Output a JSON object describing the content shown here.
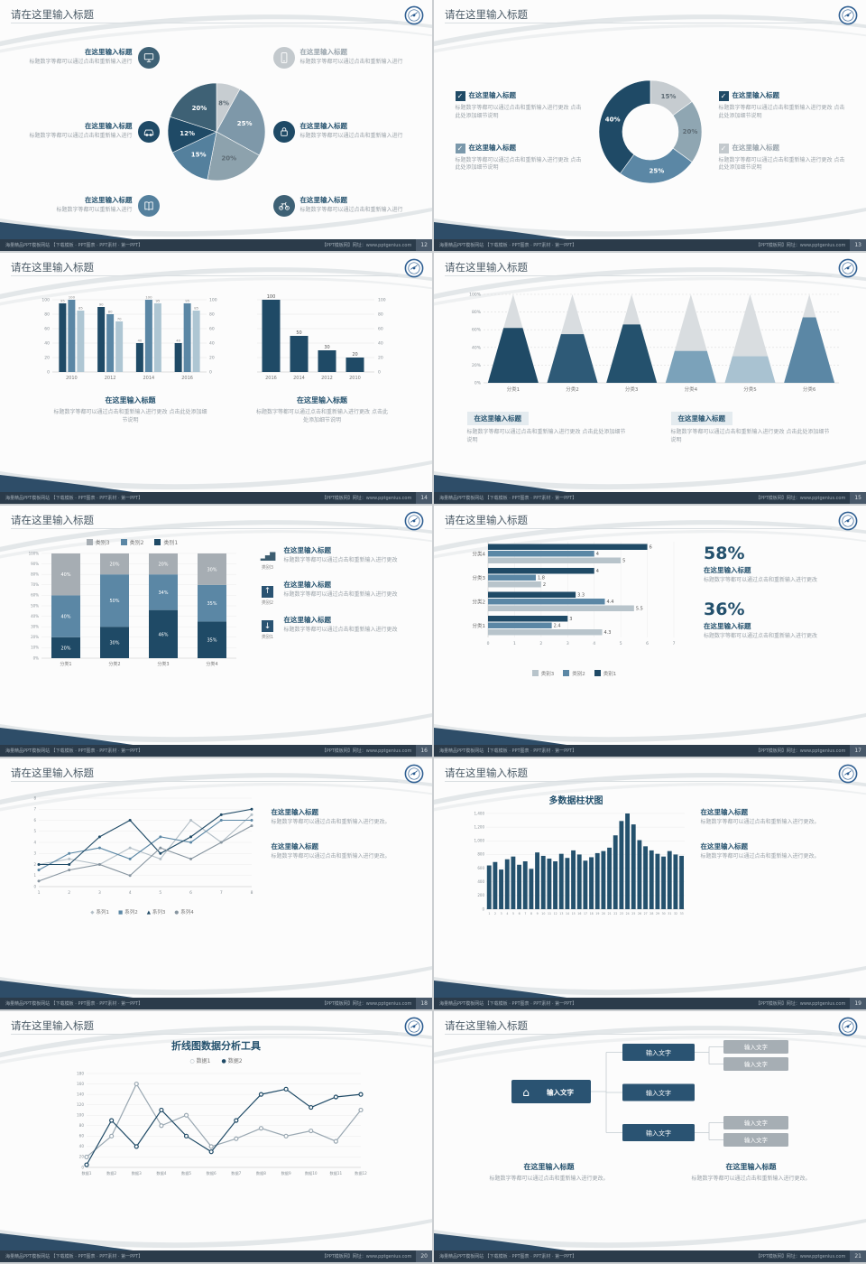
{
  "common": {
    "slide_title": "请在这里输入标题",
    "footer_left": "海量精品PPT模板网站 【下载模板 · PPT图表 · PPT素材 · 第一PPT】",
    "footer_right": "【PPT模板网】网址：www.pptgenius.com",
    "icons": {
      "check": "✓"
    }
  },
  "chart_data": [
    {
      "type": "pie",
      "values": [
        8,
        25,
        20,
        15,
        12,
        20
      ],
      "labels": [
        "8%",
        "25%",
        "20%",
        "15%",
        "12%",
        "20%"
      ],
      "colors": [
        "#c7cdd1",
        "#7e98a9",
        "#8da2ad",
        "#54809d",
        "#1f4a66",
        "#3e6175"
      ]
    },
    {
      "type": "donut",
      "values": [
        15,
        20,
        25,
        40
      ],
      "labels": [
        "15%",
        "20%",
        "25%",
        "40%"
      ],
      "colors": [
        "#c6ccd0",
        "#8fa6b2",
        "#5b87a5",
        "#1f4a66"
      ]
    },
    {
      "type": "bar",
      "subtype": "grouped",
      "categories": [
        "2010",
        "2012",
        "2014",
        "2016"
      ],
      "series": [
        {
          "color": "#1f4a66",
          "values": [
            95,
            90,
            40,
            40
          ]
        },
        {
          "color": "#5b87a5",
          "values": [
            100,
            80,
            100,
            95
          ]
        },
        {
          "color": "#aec6d3",
          "values": [
            85,
            70,
            95,
            85
          ]
        }
      ],
      "ylim": [
        0,
        100
      ],
      "yticks": [
        0,
        20,
        40,
        60,
        80,
        100
      ]
    },
    {
      "type": "bar",
      "subtype": "simple",
      "categories": [
        "2016",
        "2014",
        "2012",
        "2010"
      ],
      "values": [
        100,
        50,
        30,
        20
      ],
      "color": "#1f4a66",
      "ylim": [
        0,
        100
      ],
      "yticks": [
        0,
        20,
        40,
        60,
        80,
        100
      ]
    },
    {
      "type": "pyramid",
      "categories": [
        "分类1",
        "分类2",
        "分类3",
        "分类4",
        "分类5",
        "分类6"
      ],
      "fill_percent": [
        62,
        55,
        66,
        36,
        30,
        74
      ],
      "fill_colors": [
        "#1f4a66",
        "#2e5a77",
        "#24516d",
        "#7ba2ba",
        "#a9c2d1",
        "#5b87a5"
      ],
      "base_color": "#d9dde0",
      "ylim": [
        0,
        100
      ]
    },
    {
      "type": "bar",
      "subtype": "stacked-100",
      "categories": [
        "分类1",
        "分类2",
        "分类3",
        "分类4"
      ],
      "series": [
        {
          "name": "类别1",
          "color": "#1f4a66",
          "values": [
            20,
            30,
            46,
            35
          ]
        },
        {
          "name": "类别2",
          "color": "#5b87a5",
          "values": [
            40,
            50,
            34,
            35
          ]
        },
        {
          "name": "类别3",
          "color": "#a6adb3",
          "values": [
            40,
            20,
            20,
            30
          ]
        }
      ],
      "legend": [
        {
          "label": "类别3",
          "color": "#a6adb3"
        },
        {
          "label": "类别2",
          "color": "#5b87a5"
        },
        {
          "label": "类别1",
          "color": "#1f4a66"
        }
      ],
      "ylim": [
        0,
        100
      ]
    },
    {
      "type": "bar",
      "subtype": "horizontal-grouped",
      "categories": [
        "分类4",
        "分类3",
        "分类2",
        "分类1"
      ],
      "series": [
        {
          "name": "类别1",
          "color": "#1f4a66",
          "values": [
            6,
            4,
            3.3,
            3
          ]
        },
        {
          "name": "类别2",
          "color": "#5b87a5",
          "values": [
            4,
            1.8,
            4.4,
            2.4
          ]
        },
        {
          "name": "类别3",
          "color": "#b8c4cb",
          "values": [
            5,
            2,
            5.5,
            4.3
          ]
        }
      ],
      "xticks": [
        0,
        1,
        2,
        3,
        4,
        5,
        6,
        7
      ],
      "xlim": [
        0,
        7
      ],
      "legend": [
        {
          "label": "类别3",
          "color": "#b8c4cb"
        },
        {
          "label": "类别2",
          "color": "#5b87a5"
        },
        {
          "label": "类别1",
          "color": "#1f4a66"
        }
      ]
    },
    {
      "type": "line",
      "x_labels": [
        "1",
        "2",
        "3",
        "4",
        "5",
        "6",
        "7",
        "8"
      ],
      "ylim": [
        0,
        8
      ],
      "series": [
        {
          "name": "系列1",
          "marker": "◆",
          "color": "#b3bfc7",
          "values": [
            2,
            2.5,
            2,
            3.5,
            2.5,
            6,
            4,
            6.5
          ]
        },
        {
          "name": "系列2",
          "marker": "■",
          "color": "#5b87a5",
          "values": [
            1.5,
            3,
            3.5,
            2.5,
            4.5,
            4,
            6,
            6
          ]
        },
        {
          "name": "系列3",
          "marker": "▲",
          "color": "#1f4a66",
          "values": [
            2,
            2,
            4.5,
            6,
            3,
            4.5,
            6.5,
            7
          ]
        },
        {
          "name": "系列4",
          "marker": "●",
          "color": "#8795a0",
          "values": [
            0.5,
            1.5,
            2,
            1,
            3.5,
            2.5,
            4,
            5.5
          ]
        }
      ]
    },
    {
      "type": "bar",
      "subtype": "multi",
      "title": "多数据柱状图",
      "color": "#24516d",
      "ylim": [
        0,
        1400
      ],
      "yticks": [
        "0",
        "200",
        "400",
        "600",
        "800",
        "1,000",
        "1,200",
        "1,400"
      ],
      "x_labels": [
        "1",
        "2",
        "3",
        "4",
        "5",
        "6",
        "7",
        "8",
        "9",
        "10",
        "11",
        "12",
        "13",
        "14",
        "15",
        "16",
        "17",
        "18",
        "19",
        "20",
        "21",
        "22",
        "23",
        "24",
        "25",
        "26",
        "27",
        "28",
        "29",
        "30",
        "31",
        "32",
        "33"
      ],
      "values": [
        640,
        690,
        580,
        730,
        770,
        650,
        700,
        590,
        830,
        780,
        740,
        700,
        810,
        750,
        860,
        800,
        710,
        760,
        820,
        850,
        900,
        1080,
        1290,
        1400,
        1240,
        1010,
        920,
        860,
        810,
        770,
        850,
        800,
        780
      ]
    },
    {
      "type": "line",
      "title": "折线图数据分析工具",
      "ylim": [
        0,
        180
      ],
      "yticks": [
        "0",
        "20",
        "40",
        "60",
        "80",
        "100",
        "120",
        "140",
        "160",
        "180"
      ],
      "x_labels": [
        "数据1",
        "数据2",
        "数据3",
        "数据4",
        "数据5",
        "数据6",
        "数据7",
        "数据8",
        "数据9",
        "数据10",
        "数据11",
        "数据12"
      ],
      "series": [
        {
          "name": "数据1",
          "marker": "○",
          "color": "#9aa8b2",
          "values": [
            20,
            60,
            160,
            80,
            100,
            40,
            55,
            75,
            60,
            70,
            50,
            110
          ]
        },
        {
          "name": "数据2",
          "marker": "●",
          "color": "#1f4a66",
          "values": [
            5,
            90,
            40,
            110,
            60,
            30,
            90,
            140,
            150,
            115,
            135,
            140
          ]
        }
      ]
    },
    {
      "type": "diagram",
      "root": {
        "label": "输入文字",
        "icon": "home",
        "icon_glyph": "⌂"
      },
      "mid": [
        {
          "label": "输入文字"
        },
        {
          "label": "输入文字"
        },
        {
          "label": "输入文字"
        }
      ],
      "leaves": [
        {
          "label": "输入文字"
        },
        {
          "label": "输入文字"
        },
        {
          "label": "输入文字"
        },
        {
          "label": "输入文字"
        }
      ],
      "colors": {
        "primary": "#2a5372",
        "secondary": "#a6aeb4"
      }
    }
  ],
  "slides": [
    {
      "page": "12",
      "left_items": [
        {
          "title": "在这里输入标题",
          "text": "标题数字等都可以通过点击和重新输入进行",
          "icon": "monitor",
          "color": "#3e6175"
        },
        {
          "title": "在这里输入标题",
          "text": "标题数字等都可以通过点击和重新输入进行",
          "icon": "car",
          "color": "#1f4a66"
        },
        {
          "title": "在这里输入标题",
          "text": "标题数字等都可以重新输入进行",
          "icon": "book",
          "color": "#54809d"
        }
      ],
      "right_items": [
        {
          "title": "在这里输入标题",
          "text": "标题数字等都可以通过点击和重新输入进行",
          "icon": "phone",
          "color": "#c3c9cd"
        },
        {
          "title": "在这里输入标题",
          "text": "标题数字等都可以通过点击和重新输入进行",
          "icon": "lock",
          "color": "#1f4a66"
        },
        {
          "title": "在这里输入标题",
          "text": "标题数字等都可以通过点击和重新输入进行",
          "icon": "bike",
          "color": "#3e6175"
        }
      ]
    },
    {
      "page": "13",
      "left_items": [
        {
          "title": "在这里输入标题",
          "text": "标题数字等都可以通过点击和重新输入进行更改 点击此处添加细节说明",
          "check_color": "#1f4a66"
        },
        {
          "title": "在这里输入标题",
          "text": "标题数字等都可以通过点击和重新输入进行更改 点击此处添加细节说明",
          "check_color": "#7a98ab"
        }
      ],
      "right_items": [
        {
          "title": "在这里输入标题",
          "text": "标题数字等都可以通过点击和重新输入进行更改 点击此处添加细节说明",
          "check_color": "#1f4a66"
        },
        {
          "title": "在这里输入标题",
          "text": "标题数字等都可以通过点击和重新输入进行更改 点击此处添加细节说明",
          "check_color": "#c3c9cd"
        }
      ]
    },
    {
      "page": "14",
      "blocks": [
        {
          "title": "在这里输入标题",
          "text": "标题数字等都可以通过点击和重新输入进行更改 点击此处添加细节说明"
        },
        {
          "title": "在这里输入标题",
          "text": "标题数字等都可以通过点击和重新输入进行更改 点击此处添加细节说明"
        }
      ]
    },
    {
      "page": "15",
      "blocks": [
        {
          "title": "在这里输入标题",
          "text": "标题数字等都可以通过点击和重新输入进行更改 点击此处添加细节说明"
        },
        {
          "title": "在这里输入标题",
          "text": "标题数字等都可以通过点击和重新输入进行更改 点击此处添加细节说明"
        }
      ]
    },
    {
      "page": "16",
      "items": [
        {
          "icon_glyph": "▂▅█",
          "label": "类别3",
          "title": "在这里输入标题",
          "text": "标题数字等都可以通过点击和重新输入进行更改"
        },
        {
          "icon_glyph": "↑",
          "label": "类别2",
          "title": "在这里输入标题",
          "text": "标题数字等都可以通过点击和重新输入进行更改"
        },
        {
          "icon_glyph": "↓",
          "label": "类别1",
          "title": "在这里输入标题",
          "text": "标题数字等都可以通过点击和重新输入进行更改"
        }
      ]
    },
    {
      "page": "17",
      "stats": [
        {
          "value": "58%",
          "title": "在这里输入标题",
          "text": "标题数字等都可以通过点击和重新输入进行更改"
        },
        {
          "value": "36%",
          "title": "在这里输入标题",
          "text": "标题数字等都可以通过点击和重新输入进行更改"
        }
      ]
    },
    {
      "page": "18",
      "blocks": [
        {
          "title": "在这里输入标题",
          "text": "标题数字等都可以通过点击和重新输入进行更改。"
        },
        {
          "title": "在这里输入标题",
          "text": "标题数字等都可以通过点击和重新输入进行更改。"
        }
      ]
    },
    {
      "page": "19",
      "blocks": [
        {
          "title": "在这里输入标题",
          "text": "标题数字等都可以通过点击和重新输入进行更改。"
        },
        {
          "title": "在这里输入标题",
          "text": "标题数字等都可以通过点击和重新输入进行更改。"
        }
      ]
    },
    {
      "page": "20"
    },
    {
      "page": "21",
      "blocks": [
        {
          "title": "在这里输入标题",
          "text": "标题数字等都可以通过点击和重新输入进行更改。"
        },
        {
          "title": "在这里输入标题",
          "text": "标题数字等都可以通过点击和重新输入进行更改。"
        }
      ]
    }
  ]
}
